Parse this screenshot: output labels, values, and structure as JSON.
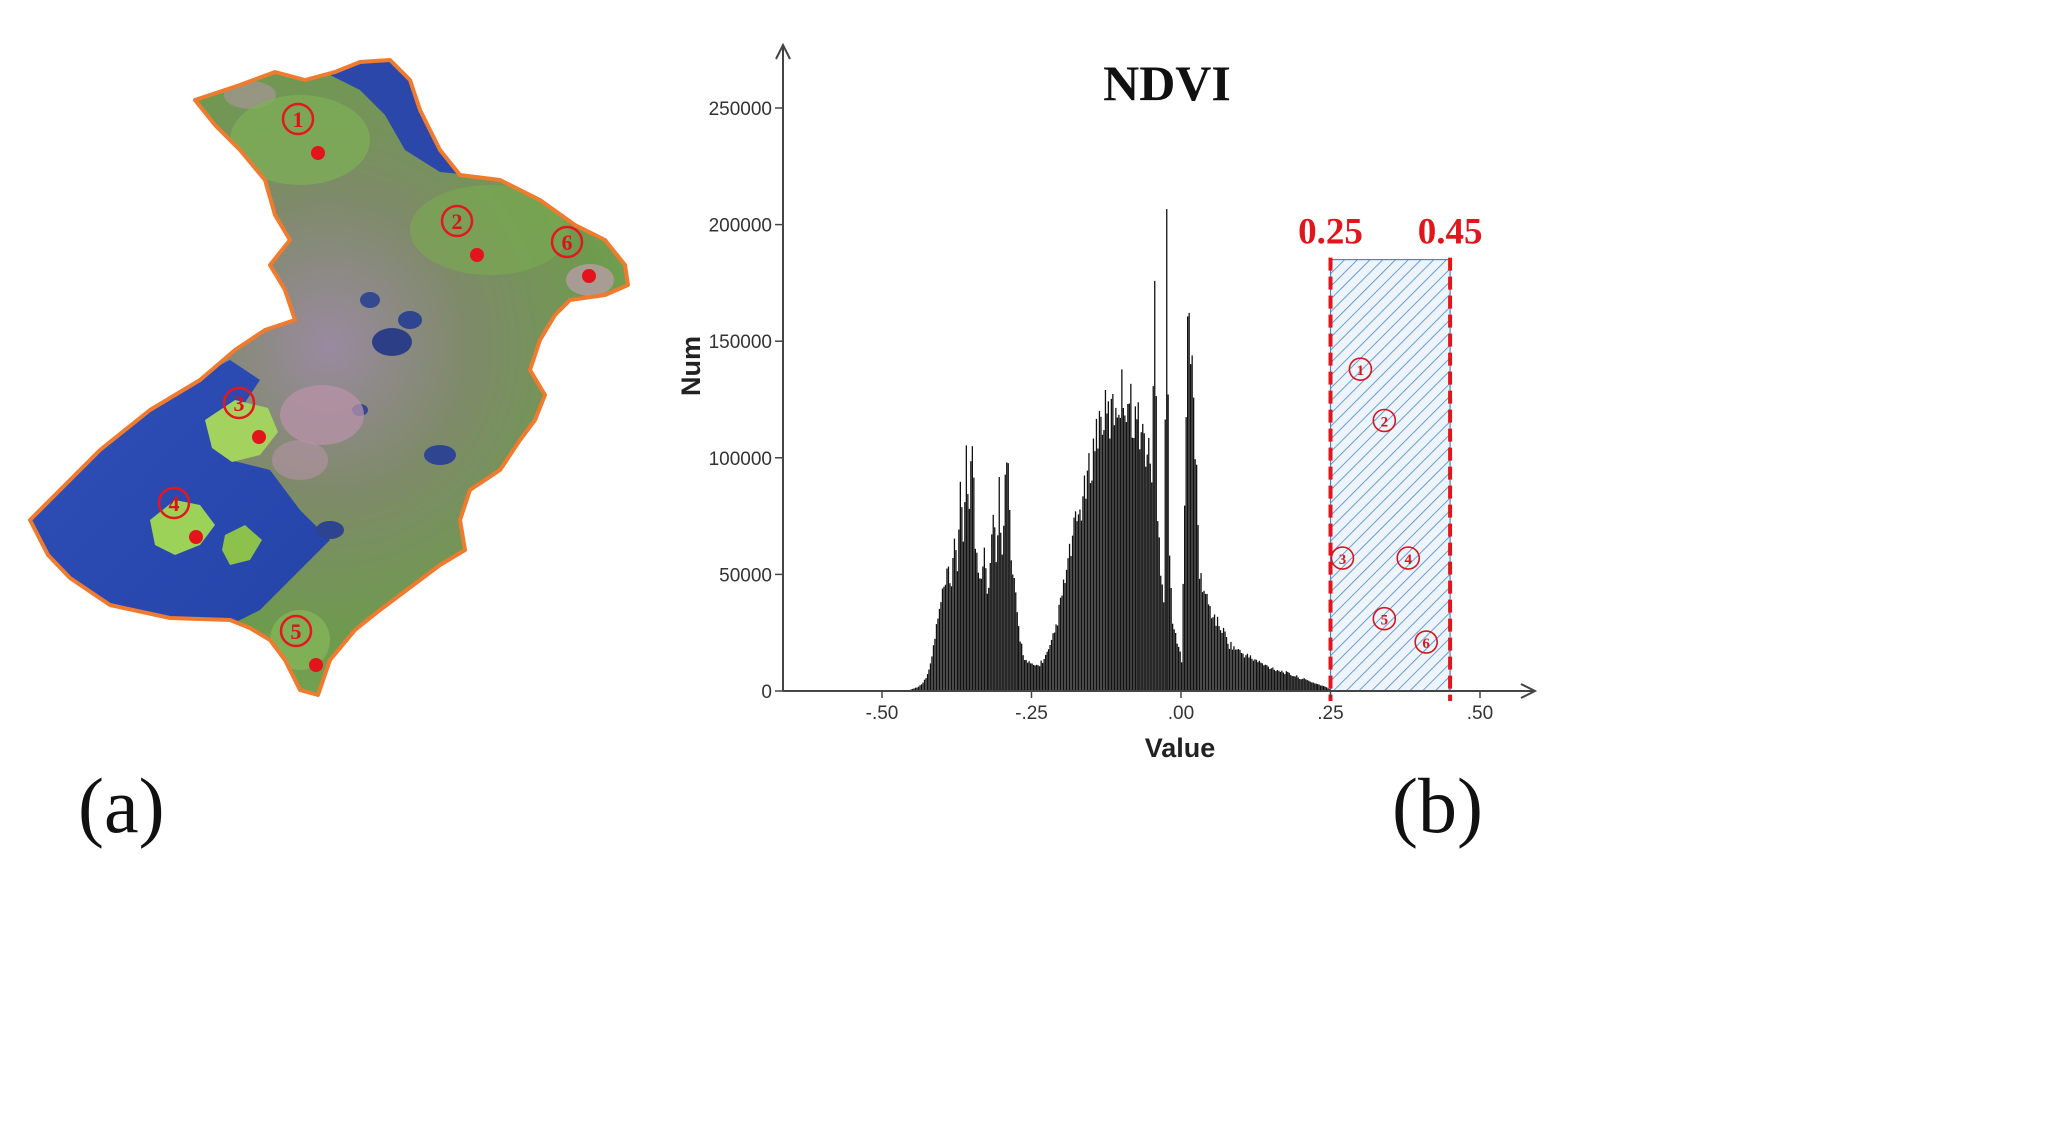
{
  "panel_labels": {
    "a": "(a)",
    "b": "(b)"
  },
  "map": {
    "sites": [
      {
        "label": "1",
        "x": 298,
        "y": 119
      },
      {
        "label": "2",
        "x": 457,
        "y": 221
      },
      {
        "label": "3",
        "x": 239,
        "y": 403
      },
      {
        "label": "4",
        "x": 174,
        "y": 503
      },
      {
        "label": "5",
        "x": 296,
        "y": 631
      },
      {
        "label": "6",
        "x": 567,
        "y": 242
      }
    ]
  },
  "chart_data": {
    "type": "bar",
    "title": "NDVI",
    "xlabel": "Value",
    "ylabel": "Num",
    "xlim": [
      -0.67,
      0.58
    ],
    "ylim": [
      0,
      270000
    ],
    "xticks": [
      {
        "value": -0.5,
        "label": "-.50"
      },
      {
        "value": -0.25,
        "label": "-.25"
      },
      {
        "value": 0.0,
        "label": ".00"
      },
      {
        "value": 0.25,
        "label": ".25"
      },
      {
        "value": 0.5,
        "label": ".50"
      }
    ],
    "yticks": [
      {
        "value": 0,
        "label": "0"
      },
      {
        "value": 50000,
        "label": "50000"
      },
      {
        "value": 100000,
        "label": "100000"
      },
      {
        "value": 150000,
        "label": "150000"
      },
      {
        "value": 200000,
        "label": "200000"
      },
      {
        "value": 250000,
        "label": "250000"
      }
    ],
    "histogram_envelope": {
      "x": [
        -0.46,
        -0.44,
        -0.43,
        -0.42,
        -0.41,
        -0.4,
        -0.39,
        -0.385,
        -0.38,
        -0.375,
        -0.37,
        -0.365,
        -0.36,
        -0.355,
        -0.35,
        -0.345,
        -0.34,
        -0.335,
        -0.33,
        -0.325,
        -0.32,
        -0.315,
        -0.31,
        -0.305,
        -0.3,
        -0.295,
        -0.29,
        -0.285,
        -0.28,
        -0.275,
        -0.27,
        -0.265,
        -0.26,
        -0.25,
        -0.24,
        -0.23,
        -0.22,
        -0.21,
        -0.2,
        -0.19,
        -0.18,
        -0.17,
        -0.16,
        -0.15,
        -0.14,
        -0.13,
        -0.12,
        -0.11,
        -0.1,
        -0.09,
        -0.08,
        -0.07,
        -0.06,
        -0.05,
        -0.045,
        -0.04,
        -0.035,
        -0.03,
        -0.025,
        -0.02,
        -0.015,
        -0.01,
        -0.005,
        0.0,
        0.01,
        0.02,
        0.03,
        0.04,
        0.05,
        0.06,
        0.07,
        0.08,
        0.1,
        0.12,
        0.14,
        0.16,
        0.18,
        0.2,
        0.22,
        0.24,
        0.25
      ],
      "y": [
        0,
        2000,
        5000,
        12000,
        30000,
        45000,
        55000,
        45000,
        75000,
        60000,
        90000,
        70000,
        118000,
        85000,
        120000,
        70000,
        60000,
        55000,
        72000,
        45000,
        60000,
        80000,
        65000,
        95000,
        70000,
        100000,
        105000,
        60000,
        50000,
        35000,
        25000,
        18000,
        14000,
        12000,
        12000,
        15000,
        20000,
        30000,
        45000,
        60000,
        75000,
        85000,
        95000,
        110000,
        125000,
        130000,
        128000,
        135000,
        140000,
        138000,
        130000,
        125000,
        115000,
        105000,
        185000,
        80000,
        60000,
        45000,
        227000,
        60000,
        35000,
        25000,
        20000,
        15000,
        175000,
        140000,
        55000,
        45000,
        37000,
        32000,
        28000,
        22000,
        18000,
        15000,
        12000,
        10000,
        8000,
        6000,
        4000,
        2000,
        500
      ]
    },
    "threshold_range": {
      "lower": {
        "value": 0.25,
        "label": "0.25"
      },
      "upper": {
        "value": 0.45,
        "label": "0.45"
      },
      "top": 185000,
      "line_color": "#e0161c",
      "hatch_color": "#4a87c9"
    },
    "site_markers": [
      {
        "label": "1",
        "x": 0.3,
        "y": 138000
      },
      {
        "label": "2",
        "x": 0.34,
        "y": 116000
      },
      {
        "label": "3",
        "x": 0.27,
        "y": 57000
      },
      {
        "label": "4",
        "x": 0.38,
        "y": 57000
      },
      {
        "label": "5",
        "x": 0.34,
        "y": 31000
      },
      {
        "label": "6",
        "x": 0.41,
        "y": 21000
      }
    ]
  }
}
